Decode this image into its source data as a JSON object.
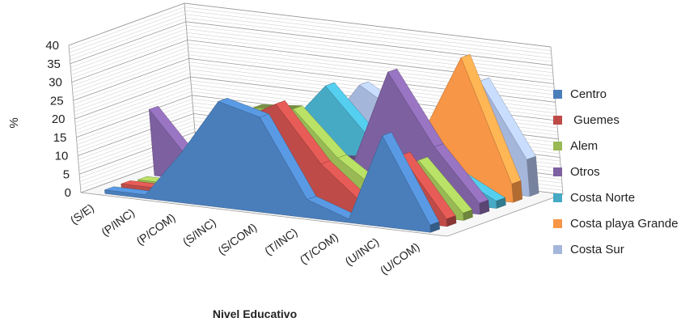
{
  "chart_data": {
    "type": "area",
    "subtype": "3d-area",
    "ylabel": "%",
    "xlabel": "Nivel Educativo",
    "categories": [
      "(S/E)",
      "(P/INC)",
      "(P/COM)",
      "(S/INC)",
      "(S/COM)",
      "(T/INC)",
      "(T/COM)",
      "(U/INC)",
      "(U/COM)"
    ],
    "ylim": [
      0,
      40
    ],
    "yticks": [
      "0",
      "5",
      "10",
      "15",
      "20",
      "25",
      "30",
      "35",
      "40"
    ],
    "grid": true,
    "legend_position": "right",
    "series": [
      {
        "name": "Centro",
        "color": "#4A7EBB",
        "values": [
          1,
          1,
          14,
          29,
          26,
          5,
          1,
          25,
          2
        ]
      },
      {
        "name": " Guemes",
        "color": "#BE4B48",
        "values": [
          1,
          1,
          10,
          22,
          28,
          13,
          3,
          18,
          2
        ]
      },
      {
        "name": "Alem",
        "color": "#98B954",
        "values": [
          0.5,
          0.5,
          8,
          24,
          25,
          13,
          5,
          15,
          2
        ]
      },
      {
        "name": "Otros",
        "color": "#7D60A0",
        "values": [
          18,
          4,
          4,
          8,
          10,
          11,
          36,
          17,
          3
        ]
      },
      {
        "name": "Costa Norte",
        "color": "#46AAC5",
        "values": [
          1,
          1,
          4,
          16,
          28,
          15,
          2,
          8,
          2
        ]
      },
      {
        "name": "Costa playa Grande",
        "color": "#F79646",
        "values": [
          0.5,
          0.5,
          3,
          10,
          16,
          12,
          18,
          38,
          5
        ]
      },
      {
        "name": "Costa Sur",
        "color": "#A5B6DB",
        "values": [
          0.5,
          0.5,
          3,
          11,
          25,
          18,
          10,
          30,
          10
        ]
      }
    ]
  }
}
